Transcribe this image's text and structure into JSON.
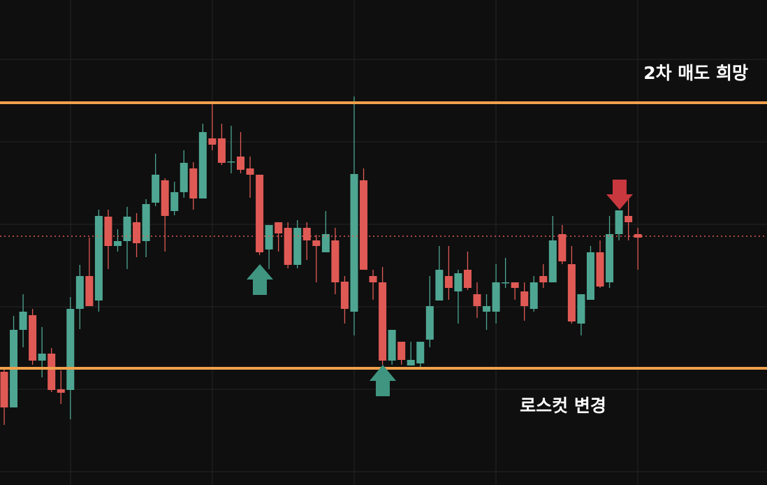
{
  "chart_data": {
    "type": "candlestick",
    "ylim": [
      0,
      694
    ],
    "ygrid": [
      609,
      491,
      373,
      255,
      137,
      19
    ],
    "up_color": "#4ea692",
    "down_color": "#e05a55",
    "open": [
      162,
      111,
      222,
      243,
      178,
      188,
      137,
      136,
      252,
      299,
      264,
      384,
      342,
      349,
      376,
      349,
      404,
      436,
      392,
      419,
      453,
      410,
      496,
      496,
      462,
      470,
      453,
      444,
      337,
      376,
      368,
      315,
      368,
      350,
      333,
      350,
      291,
      248,
      436,
      299,
      290,
      178,
      205,
      171,
      174,
      208,
      264,
      299,
      277,
      308,
      273,
      248,
      248,
      289,
      290,
      277,
      252,
      299,
      290,
      359,
      316,
      231,
      265,
      333,
      290,
      359,
      385,
      359
    ],
    "high": [
      166,
      242,
      273,
      252,
      226,
      196,
      164,
      269,
      315,
      354,
      394,
      394,
      366,
      398,
      389,
      409,
      474,
      439,
      434,
      479,
      462,
      517,
      546,
      517,
      514,
      505,
      470,
      444,
      372,
      376,
      376,
      379,
      376,
      358,
      392,
      368,
      299,
      556,
      453,
      308,
      312,
      222,
      205,
      205,
      205,
      299,
      342,
      342,
      308,
      334,
      290,
      273,
      316,
      325,
      290,
      290,
      299,
      316,
      385,
      372,
      342,
      273,
      342,
      350,
      385,
      393,
      411,
      368
    ],
    "low": [
      86,
      111,
      197,
      172,
      154,
      133,
      116,
      94,
      223,
      256,
      248,
      309,
      334,
      309,
      326,
      326,
      399,
      334,
      386,
      411,
      394,
      410,
      479,
      458,
      446,
      446,
      411,
      329,
      309,
      334,
      310,
      310,
      322,
      290,
      333,
      273,
      231,
      214,
      308,
      265,
      172,
      172,
      172,
      171,
      169,
      197,
      264,
      265,
      231,
      279,
      239,
      222,
      231,
      282,
      265,
      235,
      248,
      282,
      290,
      316,
      231,
      214,
      265,
      282,
      282,
      350,
      350,
      308
    ],
    "close": [
      111,
      222,
      248,
      178,
      188,
      136,
      132,
      252,
      299,
      256,
      385,
      342,
      349,
      384,
      346,
      402,
      444,
      385,
      419,
      461,
      410,
      505,
      487,
      461,
      463,
      451,
      444,
      333,
      372,
      360,
      315,
      368,
      350,
      342,
      359,
      290,
      252,
      445,
      308,
      290,
      178,
      222,
      179,
      179,
      205,
      256,
      308,
      282,
      303,
      282,
      256,
      256,
      290,
      290,
      282,
      256,
      290,
      290,
      350,
      320,
      234,
      273,
      333,
      284,
      359,
      393,
      376,
      354
    ],
    "hlines": [
      {
        "value": 547,
        "color": "#f0a04b",
        "style": "solid"
      },
      {
        "value": 167,
        "color": "#f0a04b",
        "style": "solid"
      },
      {
        "value": 356,
        "color": "#e05a55",
        "style": "dotted"
      }
    ],
    "annotations": [
      {
        "text": "2차 매도 희망"
      },
      {
        "text": "로스컷 변경"
      }
    ]
  }
}
